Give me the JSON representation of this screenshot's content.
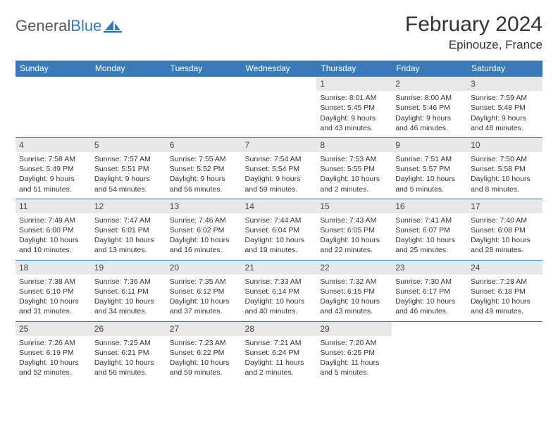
{
  "brand": {
    "part1": "General",
    "part2": "Blue"
  },
  "title": "February 2024",
  "location": "Epinouze, France",
  "colors": {
    "accent": "#3a7ab8",
    "dayhdr_bg": "#3a7ab8",
    "dayhdr_fg": "#ffffff",
    "daynum_bg": "#e8e8e8"
  },
  "day_headers": [
    "Sunday",
    "Monday",
    "Tuesday",
    "Wednesday",
    "Thursday",
    "Friday",
    "Saturday"
  ],
  "weeks": [
    [
      null,
      null,
      null,
      null,
      {
        "n": "1",
        "sr": "Sunrise: 8:01 AM",
        "ss": "Sunset: 5:45 PM",
        "dl": "Daylight: 9 hours and 43 minutes."
      },
      {
        "n": "2",
        "sr": "Sunrise: 8:00 AM",
        "ss": "Sunset: 5:46 PM",
        "dl": "Daylight: 9 hours and 46 minutes."
      },
      {
        "n": "3",
        "sr": "Sunrise: 7:59 AM",
        "ss": "Sunset: 5:48 PM",
        "dl": "Daylight: 9 hours and 48 minutes."
      }
    ],
    [
      {
        "n": "4",
        "sr": "Sunrise: 7:58 AM",
        "ss": "Sunset: 5:49 PM",
        "dl": "Daylight: 9 hours and 51 minutes."
      },
      {
        "n": "5",
        "sr": "Sunrise: 7:57 AM",
        "ss": "Sunset: 5:51 PM",
        "dl": "Daylight: 9 hours and 54 minutes."
      },
      {
        "n": "6",
        "sr": "Sunrise: 7:55 AM",
        "ss": "Sunset: 5:52 PM",
        "dl": "Daylight: 9 hours and 56 minutes."
      },
      {
        "n": "7",
        "sr": "Sunrise: 7:54 AM",
        "ss": "Sunset: 5:54 PM",
        "dl": "Daylight: 9 hours and 59 minutes."
      },
      {
        "n": "8",
        "sr": "Sunrise: 7:53 AM",
        "ss": "Sunset: 5:55 PM",
        "dl": "Daylight: 10 hours and 2 minutes."
      },
      {
        "n": "9",
        "sr": "Sunrise: 7:51 AM",
        "ss": "Sunset: 5:57 PM",
        "dl": "Daylight: 10 hours and 5 minutes."
      },
      {
        "n": "10",
        "sr": "Sunrise: 7:50 AM",
        "ss": "Sunset: 5:58 PM",
        "dl": "Daylight: 10 hours and 8 minutes."
      }
    ],
    [
      {
        "n": "11",
        "sr": "Sunrise: 7:49 AM",
        "ss": "Sunset: 6:00 PM",
        "dl": "Daylight: 10 hours and 10 minutes."
      },
      {
        "n": "12",
        "sr": "Sunrise: 7:47 AM",
        "ss": "Sunset: 6:01 PM",
        "dl": "Daylight: 10 hours and 13 minutes."
      },
      {
        "n": "13",
        "sr": "Sunrise: 7:46 AM",
        "ss": "Sunset: 6:02 PM",
        "dl": "Daylight: 10 hours and 16 minutes."
      },
      {
        "n": "14",
        "sr": "Sunrise: 7:44 AM",
        "ss": "Sunset: 6:04 PM",
        "dl": "Daylight: 10 hours and 19 minutes."
      },
      {
        "n": "15",
        "sr": "Sunrise: 7:43 AM",
        "ss": "Sunset: 6:05 PM",
        "dl": "Daylight: 10 hours and 22 minutes."
      },
      {
        "n": "16",
        "sr": "Sunrise: 7:41 AM",
        "ss": "Sunset: 6:07 PM",
        "dl": "Daylight: 10 hours and 25 minutes."
      },
      {
        "n": "17",
        "sr": "Sunrise: 7:40 AM",
        "ss": "Sunset: 6:08 PM",
        "dl": "Daylight: 10 hours and 28 minutes."
      }
    ],
    [
      {
        "n": "18",
        "sr": "Sunrise: 7:38 AM",
        "ss": "Sunset: 6:10 PM",
        "dl": "Daylight: 10 hours and 31 minutes."
      },
      {
        "n": "19",
        "sr": "Sunrise: 7:36 AM",
        "ss": "Sunset: 6:11 PM",
        "dl": "Daylight: 10 hours and 34 minutes."
      },
      {
        "n": "20",
        "sr": "Sunrise: 7:35 AM",
        "ss": "Sunset: 6:12 PM",
        "dl": "Daylight: 10 hours and 37 minutes."
      },
      {
        "n": "21",
        "sr": "Sunrise: 7:33 AM",
        "ss": "Sunset: 6:14 PM",
        "dl": "Daylight: 10 hours and 40 minutes."
      },
      {
        "n": "22",
        "sr": "Sunrise: 7:32 AM",
        "ss": "Sunset: 6:15 PM",
        "dl": "Daylight: 10 hours and 43 minutes."
      },
      {
        "n": "23",
        "sr": "Sunrise: 7:30 AM",
        "ss": "Sunset: 6:17 PM",
        "dl": "Daylight: 10 hours and 46 minutes."
      },
      {
        "n": "24",
        "sr": "Sunrise: 7:28 AM",
        "ss": "Sunset: 6:18 PM",
        "dl": "Daylight: 10 hours and 49 minutes."
      }
    ],
    [
      {
        "n": "25",
        "sr": "Sunrise: 7:26 AM",
        "ss": "Sunset: 6:19 PM",
        "dl": "Daylight: 10 hours and 52 minutes."
      },
      {
        "n": "26",
        "sr": "Sunrise: 7:25 AM",
        "ss": "Sunset: 6:21 PM",
        "dl": "Daylight: 10 hours and 56 minutes."
      },
      {
        "n": "27",
        "sr": "Sunrise: 7:23 AM",
        "ss": "Sunset: 6:22 PM",
        "dl": "Daylight: 10 hours and 59 minutes."
      },
      {
        "n": "28",
        "sr": "Sunrise: 7:21 AM",
        "ss": "Sunset: 6:24 PM",
        "dl": "Daylight: 11 hours and 2 minutes."
      },
      {
        "n": "29",
        "sr": "Sunrise: 7:20 AM",
        "ss": "Sunset: 6:25 PM",
        "dl": "Daylight: 11 hours and 5 minutes."
      },
      null,
      null
    ]
  ]
}
